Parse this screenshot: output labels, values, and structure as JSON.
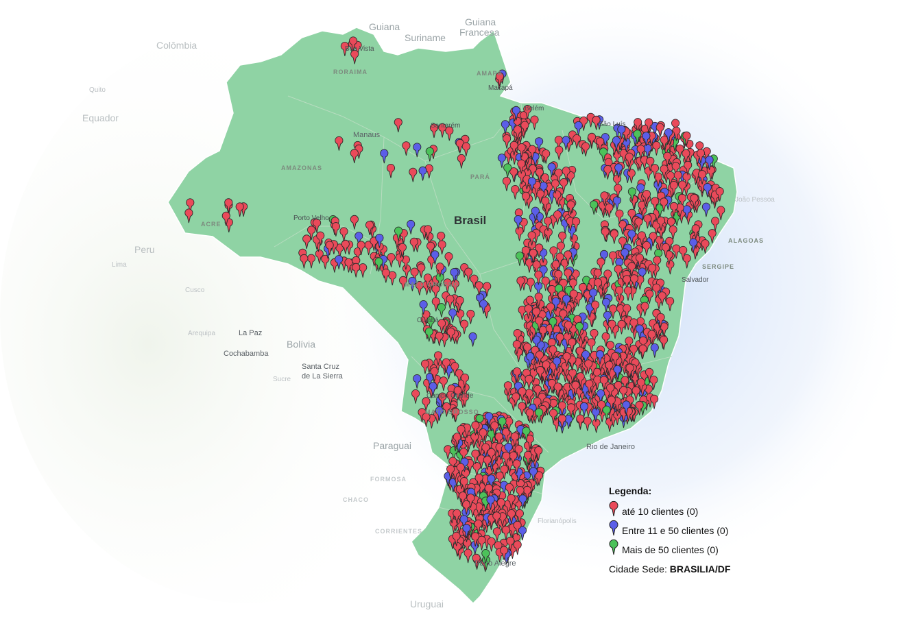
{
  "map": {
    "country_labels": {
      "colombia": "Colômbia",
      "equador": "Equador",
      "peru": "Peru",
      "bolivia": "Bolívia",
      "paraguai": "Paraguai",
      "uruguai": "Uruguai",
      "guiana": "Guiana",
      "suriname": "Suriname",
      "guiana_francesa_1": "Guiana",
      "guiana_francesa_2": "Francesa",
      "brasil": "Brasil"
    },
    "state_labels": {
      "roraima": "RORAIMA",
      "amapa": "AMAPÁ",
      "amazonas": "AMAZONAS",
      "para": "PARÁ",
      "acre": "ACRE",
      "mato_grosso": "MATO GROSSO",
      "mato_grosso_sul": "MATO GROSSO",
      "alagoas": "ALAGOAS",
      "sergipe": "SERGIPE",
      "formosa": "FORMOSA",
      "chaco": "CHACO",
      "corrientes": "CORRIENTES"
    },
    "city_labels": {
      "boa_vista": "Boa Vista",
      "macapa": "Macapá",
      "manaus": "Manaus",
      "santarem": "Santarém",
      "belem": "Belém",
      "sao_luis": "São Luís",
      "porto_velho": "Porto Velho",
      "cuiaba": "Cuiabá",
      "campo_grande": "Campo Grande",
      "rio_de_janeiro": "Rio de Janeiro",
      "porto_alegre": "Porto Alegre",
      "salvador": "Salvador",
      "joao_pessoa": "João Pessoa",
      "quito": "Quito",
      "lima": "Lima",
      "cusco": "Cusco",
      "arequipa": "Arequipa",
      "la_paz": "La Paz",
      "cochabamba": "Cochabamba",
      "santa_cruz_1": "Santa Cruz",
      "santa_cruz_2": "de La Sierra",
      "sucre": "Sucre",
      "florianopolis": "Florianópolis"
    }
  },
  "legend": {
    "title": "Legenda:",
    "items": [
      {
        "label": "até 10 clientes (0)",
        "color": "#ea4a5a"
      },
      {
        "label": "Entre 11 e 50 clientes (0)",
        "color": "#5b5ee8"
      },
      {
        "label": "Mais de 50 clientes (0)",
        "color": "#4cc25a"
      }
    ],
    "sede_label": "Cidade Sede: ",
    "sede_value": "BRASILIA/DF"
  },
  "colors": {
    "brazil_fill": "#8fd3a4",
    "glow": "#dbe8fb",
    "marker_red": "#ea4a5a",
    "marker_blue": "#5b5ee8",
    "marker_green": "#4cc25a"
  }
}
